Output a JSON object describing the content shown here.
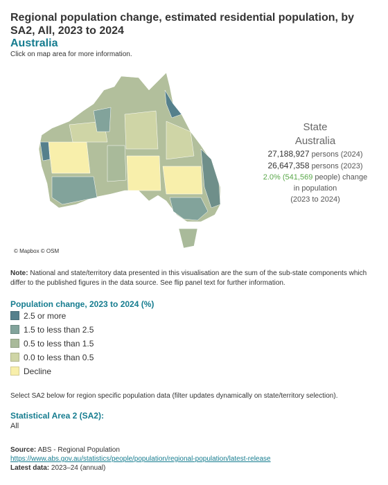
{
  "header": {
    "title": "Regional population change, estimated residential population, by SA2, All, 2023 to 2024",
    "region": "Australia",
    "instruction": "Click on map area for more information."
  },
  "map": {
    "attribution": "© Mapbox © OSM"
  },
  "info": {
    "level": "State",
    "name": "Australia",
    "population_2024": "27,188,927",
    "population_2024_unit": "persons (2024)",
    "population_2023": "26,647,358",
    "population_2023_unit": "persons (2023)",
    "change_percent": "2.0%",
    "change_count": "(541,569",
    "change_suffix": "people) change",
    "line4": "in population",
    "line5": "(2023 to 2024)"
  },
  "note": {
    "label": "Note:",
    "text": "National and state/territory data presented in this visualisation are the sum of the sub-state components which differ to the published figures in the data source. See flip panel text for further information."
  },
  "legend": {
    "title": "Population change, 2023 to 2024 (%)",
    "items": [
      {
        "label": "2.5 or more",
        "color": "#55808c"
      },
      {
        "label": "1.5 to less than 2.5",
        "color": "#82a39b"
      },
      {
        "label": "0.5 to less than 1.5",
        "color": "#a9ba9a"
      },
      {
        "label": "0.0 to less than 0.5",
        "color": "#cfd5a6"
      },
      {
        "label": "Decline",
        "color": "#f8efab"
      }
    ]
  },
  "select_text": "Select SA2 below for region specific population data (filter updates dynamically on state/territory selection).",
  "filter": {
    "label": "Statistical Area 2 (SA2):",
    "value": "All"
  },
  "source": {
    "label": "Source:",
    "text": "ABS - Regional Population",
    "link": "https://www.abs.gov.au/statistics/people/population/regional-population/latest-release",
    "latest_label": "Latest data:",
    "latest_value": "2023–24 (annual)"
  }
}
